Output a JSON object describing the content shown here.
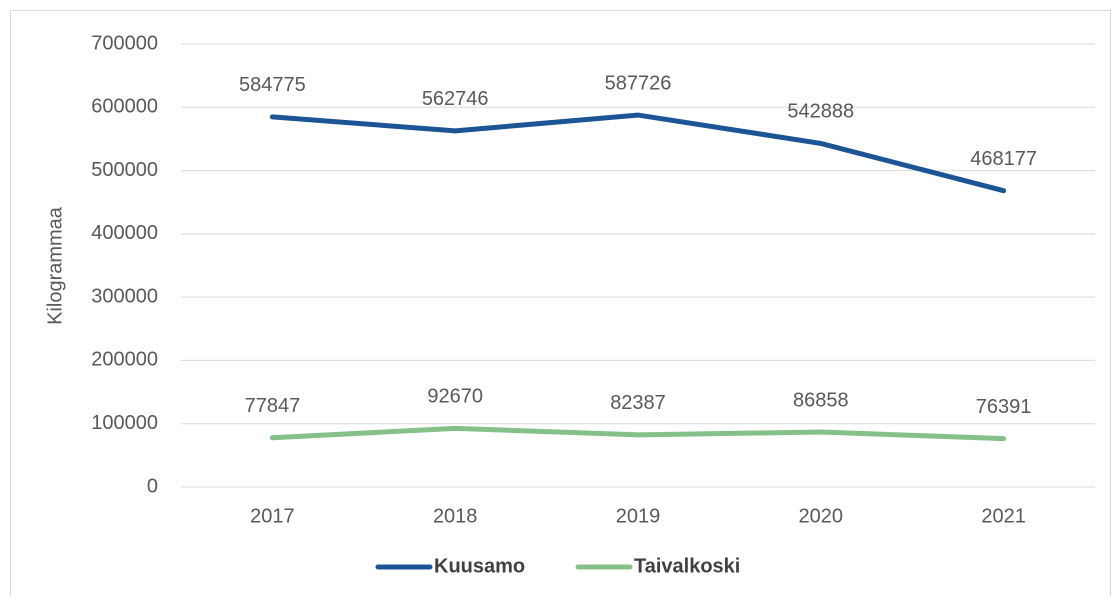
{
  "chart_data": {
    "type": "line",
    "categories": [
      "2017",
      "2018",
      "2019",
      "2020",
      "2021"
    ],
    "series": [
      {
        "name": "Kuusamo",
        "color": "#1c5596",
        "values": [
          584775,
          562746,
          587726,
          542888,
          468177
        ]
      },
      {
        "name": "Taivalkoski",
        "color": "#84c088",
        "values": [
          77847,
          92670,
          82387,
          86858,
          76391
        ]
      }
    ],
    "ylabel": "Kilogrammaa",
    "ylim": [
      0,
      700000
    ],
    "yticks": [
      0,
      100000,
      200000,
      300000,
      400000,
      500000,
      600000,
      700000
    ],
    "grid": true,
    "legend": "bottom",
    "data_labels": true
  }
}
